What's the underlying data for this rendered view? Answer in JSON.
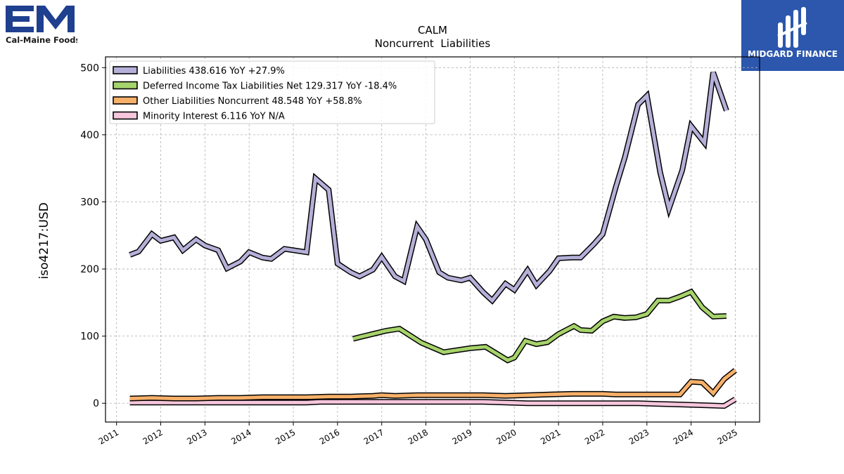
{
  "logos": {
    "left_name": "Cal-Maine Foods",
    "right_name": "MIDGARD FINANCE",
    "left_color": "#1f3f8f",
    "right_bg": "#2c57ad"
  },
  "chart_data": {
    "type": "line",
    "title": "CALM",
    "subtitle": "Noncurrent  Liabilities",
    "ylabel": "iso4217:USD",
    "xlabel": "",
    "xlim": [
      2010.75,
      2025.55
    ],
    "ylim": [
      -28,
      516
    ],
    "yticks": [
      0,
      100,
      200,
      300,
      400,
      500
    ],
    "xticks": [
      "2011",
      "2012",
      "2013",
      "2014",
      "2015",
      "2016",
      "2017",
      "2018",
      "2019",
      "2020",
      "2021",
      "2022",
      "2023",
      "2024",
      "2025"
    ],
    "grid": true,
    "legend_position": "top-left",
    "series": [
      {
        "name": "Liabilities  438.616 YoY +27.9%",
        "color": "#b5b0d8",
        "points": [
          [
            2011.3,
            221
          ],
          [
            2011.5,
            226
          ],
          [
            2011.8,
            252
          ],
          [
            2012.0,
            242
          ],
          [
            2012.3,
            247
          ],
          [
            2012.5,
            228
          ],
          [
            2012.8,
            244
          ],
          [
            2013.0,
            235
          ],
          [
            2013.3,
            228
          ],
          [
            2013.5,
            201
          ],
          [
            2013.8,
            211
          ],
          [
            2014.0,
            225
          ],
          [
            2014.3,
            217
          ],
          [
            2014.5,
            215
          ],
          [
            2014.8,
            230
          ],
          [
            2015.0,
            228
          ],
          [
            2015.3,
            225
          ],
          [
            2015.5,
            335
          ],
          [
            2015.8,
            318
          ],
          [
            2016.0,
            208
          ],
          [
            2016.3,
            195
          ],
          [
            2016.5,
            189
          ],
          [
            2016.8,
            199
          ],
          [
            2017.0,
            218
          ],
          [
            2017.3,
            189
          ],
          [
            2017.5,
            182
          ],
          [
            2017.8,
            263
          ],
          [
            2018.0,
            244
          ],
          [
            2018.3,
            195
          ],
          [
            2018.5,
            187
          ],
          [
            2018.8,
            183
          ],
          [
            2019.0,
            187
          ],
          [
            2019.3,
            165
          ],
          [
            2019.5,
            153
          ],
          [
            2019.8,
            178
          ],
          [
            2020.0,
            169
          ],
          [
            2020.3,
            198
          ],
          [
            2020.5,
            176
          ],
          [
            2020.8,
            197
          ],
          [
            2021.0,
            216
          ],
          [
            2021.3,
            217
          ],
          [
            2021.5,
            217
          ],
          [
            2021.8,
            237
          ],
          [
            2022.0,
            252
          ],
          [
            2022.3,
            323
          ],
          [
            2022.5,
            366
          ],
          [
            2022.8,
            445
          ],
          [
            2023.0,
            458
          ],
          [
            2023.3,
            344
          ],
          [
            2023.5,
            290
          ],
          [
            2023.8,
            347
          ],
          [
            2024.0,
            413
          ],
          [
            2024.3,
            388
          ],
          [
            2024.5,
            493
          ],
          [
            2024.8,
            436
          ]
        ]
      },
      {
        "name": "Deferred Income Tax Liabilities Net  129.317 YoY -18.4%",
        "color": "#a6d36b",
        "points": [
          [
            2016.35,
            96
          ],
          [
            2016.6,
            100
          ],
          [
            2016.85,
            104
          ],
          [
            2017.1,
            108
          ],
          [
            2017.4,
            111
          ],
          [
            2017.9,
            90
          ],
          [
            2018.4,
            76
          ],
          [
            2018.7,
            79
          ],
          [
            2019.0,
            82
          ],
          [
            2019.35,
            84
          ],
          [
            2019.85,
            64
          ],
          [
            2020.0,
            68
          ],
          [
            2020.25,
            93
          ],
          [
            2020.5,
            88
          ],
          [
            2020.75,
            91
          ],
          [
            2021.0,
            103
          ],
          [
            2021.35,
            115
          ],
          [
            2021.5,
            109
          ],
          [
            2021.75,
            108
          ],
          [
            2022.0,
            122
          ],
          [
            2022.25,
            129
          ],
          [
            2022.5,
            127
          ],
          [
            2022.75,
            128
          ],
          [
            2023.0,
            133
          ],
          [
            2023.25,
            153
          ],
          [
            2023.5,
            153
          ],
          [
            2023.75,
            159
          ],
          [
            2024.0,
            166
          ],
          [
            2024.25,
            143
          ],
          [
            2024.5,
            129
          ],
          [
            2024.8,
            130
          ]
        ]
      },
      {
        "name": "Other Liabilities Noncurrent  48.548 YoY +58.8%",
        "color": "#f7b06a",
        "points": [
          [
            2011.3,
            7
          ],
          [
            2011.8,
            8
          ],
          [
            2012.3,
            7
          ],
          [
            2012.8,
            7
          ],
          [
            2013.3,
            8
          ],
          [
            2013.8,
            8
          ],
          [
            2014.3,
            9
          ],
          [
            2014.8,
            9
          ],
          [
            2015.3,
            9
          ],
          [
            2015.8,
            10
          ],
          [
            2016.3,
            10
          ],
          [
            2016.8,
            11
          ],
          [
            2017.0,
            12
          ],
          [
            2017.3,
            11
          ],
          [
            2017.8,
            12
          ],
          [
            2018.3,
            12
          ],
          [
            2018.8,
            12
          ],
          [
            2019.3,
            12
          ],
          [
            2019.8,
            11
          ],
          [
            2020.3,
            12
          ],
          [
            2020.8,
            13
          ],
          [
            2021.3,
            14
          ],
          [
            2021.8,
            14
          ],
          [
            2022.0,
            14
          ],
          [
            2022.3,
            13
          ],
          [
            2022.8,
            13
          ],
          [
            2023.3,
            13
          ],
          [
            2023.75,
            13
          ],
          [
            2024.0,
            32
          ],
          [
            2024.25,
            31
          ],
          [
            2024.5,
            15
          ],
          [
            2024.75,
            36
          ],
          [
            2025.0,
            49
          ]
        ]
      },
      {
        "name": "Minority Interest  6.116 YoY N/A",
        "color": "#f5c6dc",
        "points": [
          [
            2011.3,
            1
          ],
          [
            2012.3,
            1
          ],
          [
            2013.3,
            1
          ],
          [
            2014.3,
            1
          ],
          [
            2015.3,
            1
          ],
          [
            2015.6,
            2
          ],
          [
            2016.3,
            2
          ],
          [
            2017.3,
            2
          ],
          [
            2018.3,
            2
          ],
          [
            2019.3,
            2
          ],
          [
            2019.8,
            1
          ],
          [
            2020.3,
            0
          ],
          [
            2021.3,
            0
          ],
          [
            2022.3,
            0
          ],
          [
            2022.8,
            0
          ],
          [
            2023.3,
            -1
          ],
          [
            2023.8,
            -2
          ],
          [
            2024.3,
            -3
          ],
          [
            2024.75,
            -4
          ],
          [
            2025.0,
            6
          ]
        ]
      }
    ]
  }
}
